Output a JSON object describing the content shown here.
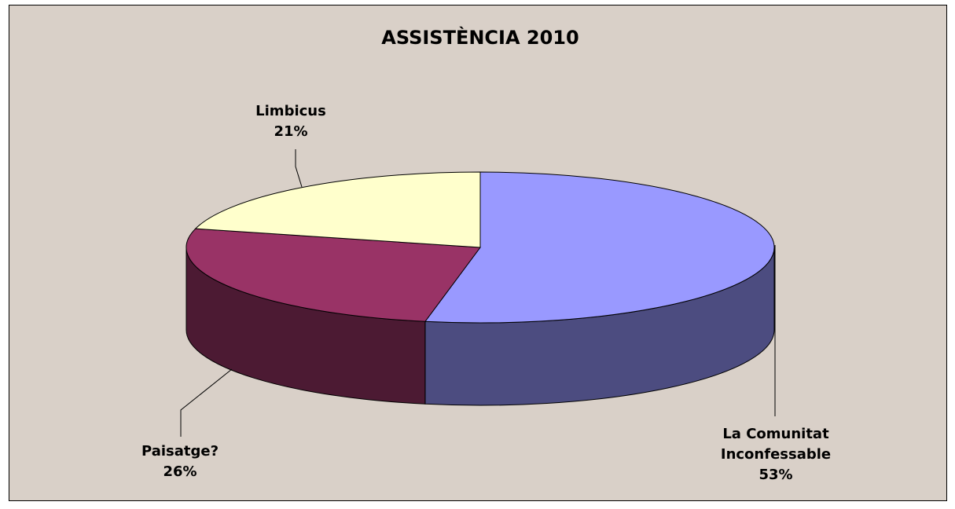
{
  "chart_data": {
    "type": "pie",
    "style": "3d",
    "title": "ASSISTÈNCIA 2010",
    "slices": [
      {
        "name": "La Comunitat Inconfessable",
        "label_lines": [
          "La Comunitat",
          "Inconfessable"
        ],
        "value": 53,
        "percent_label": "53%",
        "color": "#9999ff",
        "side_color": "#4c4c80"
      },
      {
        "name": "Paisatge?",
        "label_lines": [
          "Paisatge?"
        ],
        "value": 26,
        "percent_label": "26%",
        "color": "#993366",
        "side_color": "#4c1a33"
      },
      {
        "name": "Limbicus",
        "label_lines": [
          "Limbicus"
        ],
        "value": 21,
        "percent_label": "21%",
        "color": "#ffffcc",
        "side_color": "#808066"
      }
    ],
    "background_color": "#d9d0c8",
    "legend": "none"
  }
}
